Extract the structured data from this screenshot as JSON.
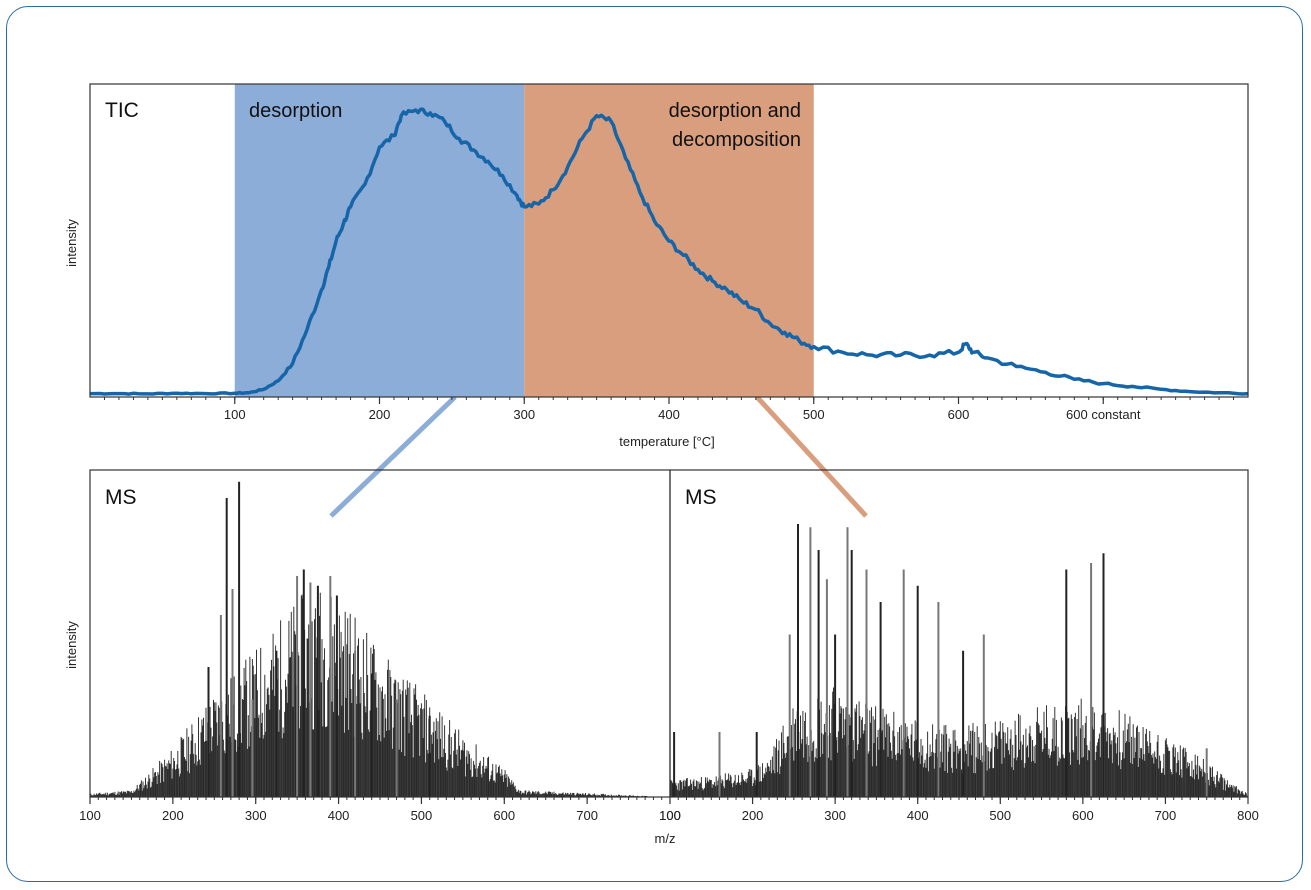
{
  "chart_data": [
    {
      "type": "line",
      "title": "TIC",
      "xlabel": "temperature [°C]",
      "ylabel": "intensity",
      "xlim": [
        0,
        800
      ],
      "ylim": [
        0,
        1
      ],
      "grid": false,
      "x_ticks": [
        {
          "value": 100,
          "label": "100"
        },
        {
          "value": 200,
          "label": "200"
        },
        {
          "value": 300,
          "label": "300"
        },
        {
          "value": 400,
          "label": "400"
        },
        {
          "value": 500,
          "label": "500"
        },
        {
          "value": 600,
          "label": "600"
        },
        {
          "value": 700,
          "label": "600 constant"
        }
      ],
      "regions": [
        {
          "label": "desorption",
          "x_start": 100,
          "x_end": 300,
          "color": "#8dadd9"
        },
        {
          "label": "desorption and decomposition",
          "label_lines": [
            "desorption and",
            "decomposition"
          ],
          "x_start": 300,
          "x_end": 500,
          "color": "#d99e7d"
        }
      ],
      "series": [
        {
          "color": "#1565a8",
          "points": [
            [
              0,
              0.005
            ],
            [
              20,
              0.005
            ],
            [
              40,
              0.004
            ],
            [
              60,
              0.006
            ],
            [
              80,
              0.005
            ],
            [
              100,
              0.006
            ],
            [
              110,
              0.008
            ],
            [
              120,
              0.02
            ],
            [
              130,
              0.05
            ],
            [
              140,
              0.11
            ],
            [
              150,
              0.23
            ],
            [
              160,
              0.37
            ],
            [
              165,
              0.45
            ],
            [
              170,
              0.54
            ],
            [
              175,
              0.6
            ],
            [
              180,
              0.66
            ],
            [
              190,
              0.74
            ],
            [
              200,
              0.87
            ],
            [
              210,
              0.91
            ],
            [
              215,
              0.98
            ],
            [
              225,
              1.0
            ],
            [
              235,
              0.99
            ],
            [
              245,
              0.96
            ],
            [
              255,
              0.9
            ],
            [
              265,
              0.86
            ],
            [
              275,
              0.82
            ],
            [
              285,
              0.77
            ],
            [
              295,
              0.7
            ],
            [
              300,
              0.66
            ],
            [
              310,
              0.67
            ],
            [
              320,
              0.72
            ],
            [
              330,
              0.8
            ],
            [
              340,
              0.9
            ],
            [
              350,
              0.98
            ],
            [
              360,
              0.96
            ],
            [
              370,
              0.83
            ],
            [
              380,
              0.71
            ],
            [
              390,
              0.61
            ],
            [
              400,
              0.54
            ],
            [
              410,
              0.49
            ],
            [
              420,
              0.44
            ],
            [
              430,
              0.4
            ],
            [
              440,
              0.37
            ],
            [
              450,
              0.33
            ],
            [
              460,
              0.3
            ],
            [
              470,
              0.25
            ],
            [
              480,
              0.22
            ],
            [
              490,
              0.19
            ],
            [
              500,
              0.17
            ],
            [
              520,
              0.15
            ],
            [
              540,
              0.14
            ],
            [
              560,
              0.14
            ],
            [
              580,
              0.14
            ],
            [
              600,
              0.15
            ],
            [
              605,
              0.18
            ],
            [
              610,
              0.15
            ],
            [
              620,
              0.13
            ],
            [
              640,
              0.1
            ],
            [
              660,
              0.08
            ],
            [
              680,
              0.055
            ],
            [
              700,
              0.04
            ],
            [
              720,
              0.03
            ],
            [
              740,
              0.02
            ],
            [
              760,
              0.012
            ],
            [
              780,
              0.008
            ],
            [
              800,
              0.005
            ]
          ]
        }
      ]
    },
    {
      "type": "bar",
      "title": "MS",
      "xlabel": "m/z",
      "ylabel": "intensity",
      "xlim": [
        100,
        800
      ],
      "ylim": [
        0,
        1
      ],
      "x_ticks": [
        100,
        200,
        300,
        400,
        500,
        600,
        700,
        800
      ],
      "color": "#111111",
      "envelope": [
        [
          100,
          0.01
        ],
        [
          150,
          0.02
        ],
        [
          175,
          0.08
        ],
        [
          200,
          0.14
        ],
        [
          250,
          0.3
        ],
        [
          300,
          0.42
        ],
        [
          350,
          0.56
        ],
        [
          380,
          0.6
        ],
        [
          400,
          0.58
        ],
        [
          450,
          0.42
        ],
        [
          500,
          0.3
        ],
        [
          550,
          0.18
        ],
        [
          600,
          0.08
        ],
        [
          620,
          0.02
        ],
        [
          800,
          0.0
        ]
      ],
      "labeled_peaks": [
        [
          243,
          0.4
        ],
        [
          258,
          0.56
        ],
        [
          265,
          0.92
        ],
        [
          272,
          0.64
        ],
        [
          280,
          0.97
        ],
        [
          296,
          0.3
        ],
        [
          325,
          0.45
        ],
        [
          350,
          0.68
        ],
        [
          358,
          0.7
        ],
        [
          366,
          0.66
        ],
        [
          375,
          0.65
        ],
        [
          390,
          0.68
        ],
        [
          398,
          0.62
        ],
        [
          420,
          0.45
        ],
        [
          440,
          0.38
        ],
        [
          470,
          0.3
        ],
        [
          510,
          0.25
        ]
      ]
    },
    {
      "type": "bar",
      "title": "MS",
      "xlabel": "m/z",
      "ylabel": "intensity",
      "xlim": [
        100,
        800
      ],
      "ylim": [
        0,
        1
      ],
      "x_ticks": [
        100,
        200,
        300,
        400,
        500,
        600,
        700,
        800
      ],
      "color": "#111111",
      "envelope": [
        [
          100,
          0.05
        ],
        [
          150,
          0.06
        ],
        [
          200,
          0.08
        ],
        [
          220,
          0.12
        ],
        [
          250,
          0.28
        ],
        [
          300,
          0.32
        ],
        [
          350,
          0.26
        ],
        [
          400,
          0.22
        ],
        [
          450,
          0.2
        ],
        [
          500,
          0.22
        ],
        [
          550,
          0.26
        ],
        [
          600,
          0.28
        ],
        [
          650,
          0.24
        ],
        [
          700,
          0.18
        ],
        [
          750,
          0.1
        ],
        [
          780,
          0.04
        ],
        [
          800,
          0.01
        ]
      ],
      "labeled_peaks": [
        [
          105,
          0.2
        ],
        [
          160,
          0.2
        ],
        [
          205,
          0.2
        ],
        [
          245,
          0.5
        ],
        [
          255,
          0.84
        ],
        [
          270,
          0.83
        ],
        [
          280,
          0.76
        ],
        [
          290,
          0.67
        ],
        [
          300,
          0.5
        ],
        [
          315,
          0.83
        ],
        [
          320,
          0.76
        ],
        [
          338,
          0.7
        ],
        [
          355,
          0.6
        ],
        [
          383,
          0.7
        ],
        [
          400,
          0.65
        ],
        [
          425,
          0.6
        ],
        [
          455,
          0.45
        ],
        [
          480,
          0.5
        ],
        [
          580,
          0.7
        ],
        [
          610,
          0.72
        ],
        [
          625,
          0.75
        ],
        [
          750,
          0.15
        ]
      ]
    }
  ]
}
